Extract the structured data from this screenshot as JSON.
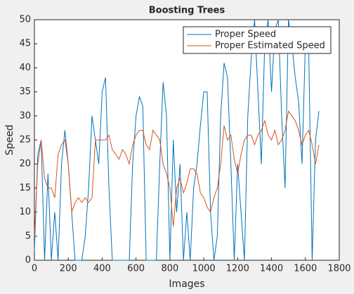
{
  "chart_data": {
    "type": "line",
    "title": "Boosting Trees",
    "xlabel": "Images",
    "ylabel": "Speed",
    "x": [
      0,
      20,
      40,
      60,
      80,
      100,
      120,
      140,
      160,
      180,
      200,
      220,
      240,
      260,
      280,
      300,
      320,
      340,
      360,
      380,
      400,
      420,
      440,
      460,
      480,
      500,
      520,
      540,
      560,
      580,
      600,
      620,
      640,
      660,
      680,
      700,
      720,
      740,
      760,
      780,
      800,
      820,
      840,
      860,
      880,
      900,
      920,
      940,
      960,
      980,
      1000,
      1020,
      1040,
      1060,
      1080,
      1100,
      1120,
      1140,
      1160,
      1180,
      1200,
      1220,
      1240,
      1260,
      1280,
      1300,
      1320,
      1340,
      1360,
      1380,
      1400,
      1420,
      1440,
      1460,
      1480,
      1500,
      1520,
      1540,
      1560,
      1580,
      1600,
      1620,
      1640,
      1660,
      1680
    ],
    "series": [
      {
        "name": "Proper Speed",
        "color": "#0072bd",
        "values": [
          2,
          22,
          25,
          0,
          18,
          0,
          10,
          0,
          20,
          27,
          20,
          10,
          0,
          0,
          0,
          5,
          15,
          30,
          25,
          20,
          35,
          38,
          15,
          0,
          0,
          0,
          0,
          0,
          0,
          20,
          30,
          34,
          32,
          0,
          0,
          0,
          0,
          20,
          37,
          30,
          0,
          25,
          10,
          20,
          0,
          10,
          0,
          15,
          20,
          28,
          35,
          35,
          10,
          0,
          5,
          30,
          41,
          38,
          20,
          0,
          20,
          10,
          0,
          30,
          42,
          50,
          35,
          20,
          45,
          50,
          35,
          48,
          50,
          30,
          15,
          50,
          45,
          38,
          33,
          20,
          45,
          43,
          0,
          25,
          31
        ]
      },
      {
        "name": "Proper Estimated Speed",
        "color": "#d95319",
        "values": [
          5,
          20,
          25,
          17,
          15,
          15,
          13,
          22,
          24,
          25,
          20,
          10,
          12,
          13,
          12,
          13,
          12,
          13,
          25,
          25,
          25,
          25,
          26,
          23,
          22,
          21,
          23,
          22,
          20,
          24,
          26,
          27,
          27,
          24,
          23,
          27,
          26,
          25,
          20,
          18,
          15,
          7,
          15,
          17,
          14,
          16,
          19,
          19,
          18,
          14,
          13,
          11,
          10,
          13,
          15,
          20,
          28,
          25,
          26,
          21,
          18,
          22,
          25,
          26,
          26,
          24,
          26,
          27,
          29,
          26,
          25,
          27,
          24,
          25,
          27,
          31,
          30,
          29,
          27,
          24,
          26,
          27,
          24,
          20,
          24
        ]
      }
    ],
    "xlim": [
      0,
      1800
    ],
    "xticks": [
      0,
      200,
      400,
      600,
      800,
      1000,
      1200,
      1400,
      1600,
      1800
    ],
    "ylim": [
      0,
      50
    ],
    "yticks": [
      0,
      5,
      10,
      15,
      20,
      25,
      30,
      35,
      40,
      45,
      50
    ],
    "legend": "top-right"
  }
}
